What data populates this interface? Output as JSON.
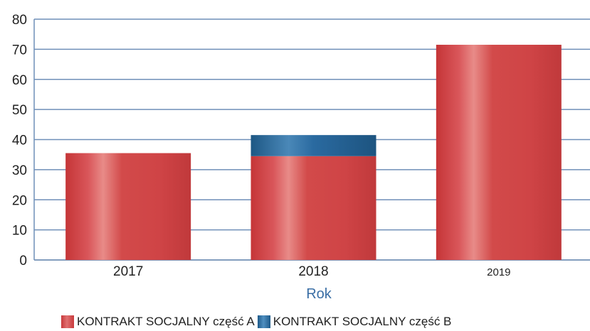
{
  "chart_data": {
    "type": "bar",
    "stacked": true,
    "categories": [
      "2017",
      "2018",
      "2019"
    ],
    "series": [
      {
        "name": "KONTRAKT SOCJALNY część A",
        "values": [
          35.5,
          34.5,
          71.5
        ],
        "color": "#d24a4a"
      },
      {
        "name": "KONTRAKT SOCJALNY część B",
        "values": [
          0,
          7,
          0
        ],
        "color": "#2a6aa0"
      }
    ],
    "title": "",
    "xlabel": "Rok",
    "ylabel": "",
    "ylim": [
      0,
      80
    ],
    "yticks": [
      "0",
      "10",
      "20",
      "30",
      "40",
      "50",
      "60",
      "70",
      "80"
    ],
    "grid": true,
    "legend_position": "bottom"
  }
}
